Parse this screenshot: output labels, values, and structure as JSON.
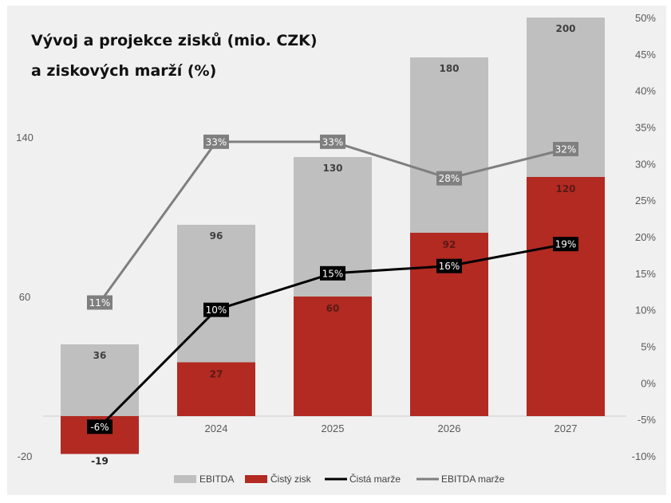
{
  "chart_data": {
    "type": "bar+line",
    "title_lines": [
      "Vývoj a projekce zisků (mio. CZK)",
      "a ziskových marží (%)"
    ],
    "categories": [
      "",
      "2024",
      "2025",
      "2026",
      "2027"
    ],
    "y_left": {
      "min": -20,
      "max": 200,
      "ticks": [
        "140",
        "60",
        "-20"
      ],
      "tick_values": [
        140,
        60,
        -20
      ]
    },
    "y_right": {
      "min": -10,
      "max": 50,
      "step": 5,
      "ticks": [
        "50%",
        "45%",
        "40%",
        "35%",
        "30%",
        "25%",
        "20%",
        "15%",
        "10%",
        "5%",
        "0%",
        "-5%",
        "-10%"
      ]
    },
    "series": [
      {
        "name": "EBITDA",
        "kind": "bar",
        "axis": "left",
        "color": "#bfbfbf",
        "values": [
          36,
          96,
          130,
          180,
          200
        ],
        "labels": [
          "36",
          "96",
          "130",
          "180",
          "200"
        ]
      },
      {
        "name": "Čistý zisk",
        "kind": "bar",
        "axis": "left",
        "color": "#b22a22",
        "values": [
          -19,
          27,
          60,
          92,
          120
        ],
        "labels": [
          "-19",
          "27",
          "60",
          "92",
          "120"
        ]
      },
      {
        "name": "Čistá marže",
        "kind": "line",
        "axis": "right",
        "color": "#000000",
        "values": [
          -6,
          10,
          15,
          16,
          19
        ],
        "labels": [
          "-6%",
          "10%",
          "15%",
          "16%",
          "19%"
        ]
      },
      {
        "name": "EBITDA marže",
        "kind": "line",
        "axis": "right",
        "color": "#7f7f7f",
        "values": [
          11,
          33,
          33,
          28,
          32
        ],
        "labels": [
          "11%",
          "33%",
          "33%",
          "28%",
          "32%"
        ]
      }
    ],
    "legend": [
      "EBITDA",
      "Čistý zisk",
      "Čistá marže",
      "EBITDA marže"
    ],
    "legend_position": "bottom"
  }
}
